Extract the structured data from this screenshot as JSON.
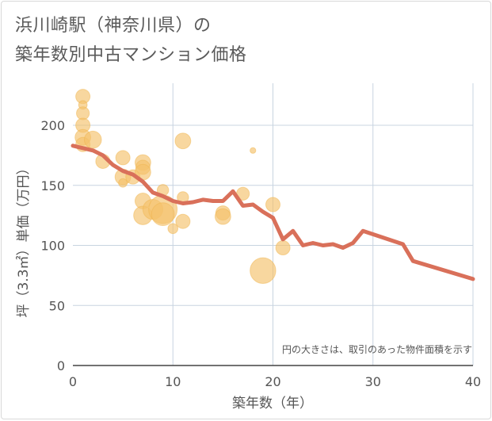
{
  "title_line1": "浜川崎駅（神奈川県）の",
  "title_line2": "築年数別中古マンション価格",
  "chart_data": {
    "type": "scatter+line",
    "title": "浜川崎駅（神奈川県）の築年数別中古マンション価格",
    "xlabel": "築年数（年）",
    "ylabel": "坪（3.3㎡）単価（万円）",
    "xlim": [
      0,
      40
    ],
    "ylim": [
      0,
      235
    ],
    "xticks": [
      0,
      10,
      20,
      30,
      40
    ],
    "yticks": [
      0,
      50,
      100,
      150,
      200
    ],
    "grid": true,
    "annotation": "円の大きさは、取引のあった物件面積を示す",
    "colors": {
      "bubble": "#f5c26b",
      "line": "#d9705a",
      "grid": "#c8d4e0"
    },
    "bubbles": [
      {
        "x": 1,
        "y": 224,
        "size": 1.0
      },
      {
        "x": 1,
        "y": 217,
        "size": 0.6
      },
      {
        "x": 1,
        "y": 210,
        "size": 0.9
      },
      {
        "x": 1,
        "y": 200,
        "size": 1.0
      },
      {
        "x": 1,
        "y": 190,
        "size": 1.1
      },
      {
        "x": 1,
        "y": 184,
        "size": 1.0
      },
      {
        "x": 2,
        "y": 188,
        "size": 1.2
      },
      {
        "x": 3,
        "y": 170,
        "size": 1.0
      },
      {
        "x": 5,
        "y": 173,
        "size": 1.0
      },
      {
        "x": 5,
        "y": 157,
        "size": 1.1
      },
      {
        "x": 5,
        "y": 152,
        "size": 0.6
      },
      {
        "x": 6,
        "y": 157,
        "size": 1.0
      },
      {
        "x": 7,
        "y": 169,
        "size": 1.1
      },
      {
        "x": 7,
        "y": 165,
        "size": 1.0
      },
      {
        "x": 7,
        "y": 161,
        "size": 1.1
      },
      {
        "x": 7,
        "y": 137,
        "size": 1.1
      },
      {
        "x": 7,
        "y": 125,
        "size": 1.3
      },
      {
        "x": 8,
        "y": 130,
        "size": 1.4
      },
      {
        "x": 9,
        "y": 146,
        "size": 0.8
      },
      {
        "x": 9,
        "y": 130,
        "size": 2.0
      },
      {
        "x": 9,
        "y": 126,
        "size": 1.6
      },
      {
        "x": 10,
        "y": 114,
        "size": 0.7
      },
      {
        "x": 11,
        "y": 187,
        "size": 1.1
      },
      {
        "x": 11,
        "y": 140,
        "size": 0.8
      },
      {
        "x": 11,
        "y": 120,
        "size": 1.0
      },
      {
        "x": 15,
        "y": 127,
        "size": 1.0
      },
      {
        "x": 15,
        "y": 124,
        "size": 1.1
      },
      {
        "x": 17,
        "y": 143,
        "size": 0.9
      },
      {
        "x": 18,
        "y": 179,
        "size": 0.4
      },
      {
        "x": 19,
        "y": 79,
        "size": 1.8
      },
      {
        "x": 20,
        "y": 134,
        "size": 1.0
      },
      {
        "x": 21,
        "y": 98,
        "size": 1.0
      }
    ],
    "line": {
      "x": [
        0,
        1,
        2,
        3,
        4,
        5,
        6,
        7,
        8,
        9,
        10,
        11,
        12,
        13,
        14,
        15,
        16,
        17,
        18,
        19,
        20,
        21,
        22,
        23,
        24,
        25,
        26,
        27,
        28,
        29,
        33,
        34,
        40
      ],
      "y": [
        183,
        181,
        179,
        175,
        167,
        162,
        159,
        153,
        144,
        141,
        137,
        135,
        136,
        138,
        137,
        137,
        145,
        133,
        134,
        128,
        123,
        105,
        112,
        100,
        102,
        100,
        101,
        98,
        102,
        112,
        101,
        87,
        72
      ]
    }
  }
}
